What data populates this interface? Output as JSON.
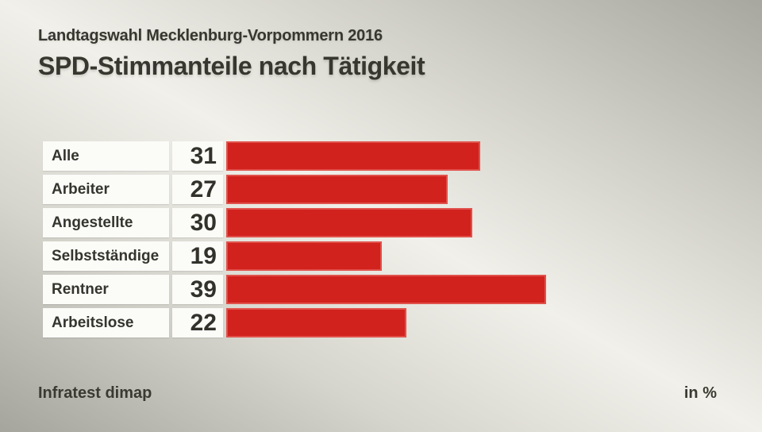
{
  "header": {
    "subtitle": "Landtagswahl Mecklenburg-Vorpommern 2016",
    "title": "SPD-Stimmanteile nach Tätigkeit"
  },
  "footer": {
    "source": "Infratest dimap",
    "unit_label": "in %"
  },
  "colors": {
    "bar": "#d2221e",
    "box_background": "#fbfbf8",
    "text": "#373730"
  },
  "chart_data": {
    "type": "bar",
    "orientation": "horizontal",
    "title": "SPD-Stimmanteile nach Tätigkeit",
    "subtitle": "Landtagswahl Mecklenburg-Vorpommern 2016",
    "unit": "%",
    "categories": [
      "Alle",
      "Arbeiter",
      "Angestellte",
      "Selbstständige",
      "Rentner",
      "Arbeitslose"
    ],
    "values": [
      31,
      27,
      30,
      19,
      39,
      22
    ],
    "xlim": [
      0,
      60
    ],
    "grid": false,
    "legend": false,
    "value_labels_shown": true,
    "source": "Infratest dimap",
    "value_unit_note": "in %"
  }
}
